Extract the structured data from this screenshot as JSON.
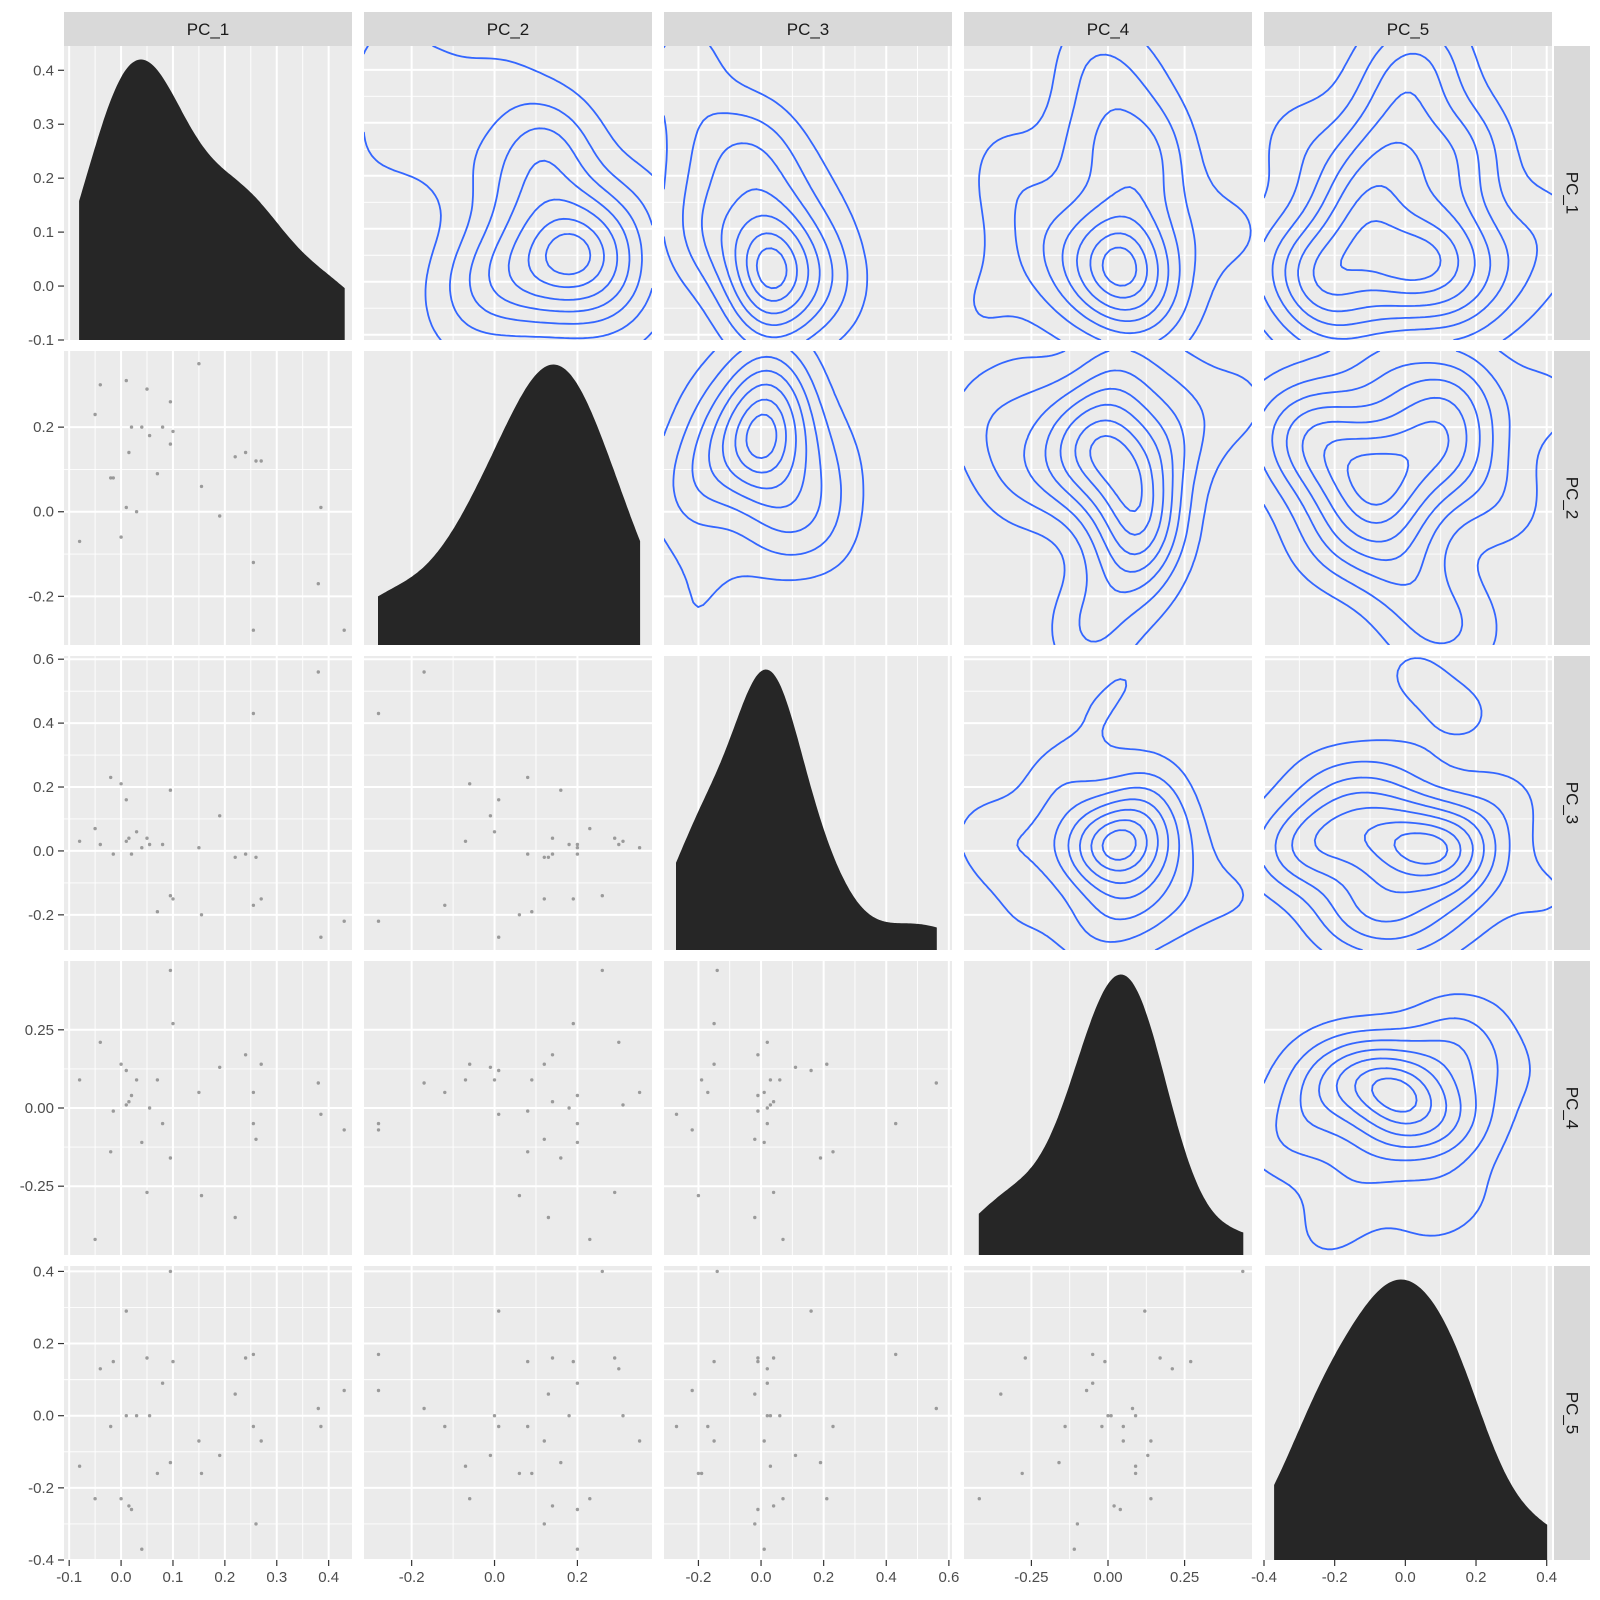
{
  "chart_data": {
    "type": "scatter",
    "title": "",
    "variables": [
      "PC_1",
      "PC_2",
      "PC_3",
      "PC_4",
      "PC_5"
    ],
    "layout": "pairs-matrix: upper = 2D density contours, diagonal = density, lower = scatter",
    "axes": {
      "PC_1": {
        "lim": [
          -0.11,
          0.445
        ],
        "ticks": [
          -0.1,
          0.0,
          0.1,
          0.2,
          0.3,
          0.4
        ],
        "tick_labels": [
          "-0.1",
          "0.0",
          "0.1",
          "0.2",
          "0.3",
          "0.4"
        ]
      },
      "PC_2": {
        "lim": [
          -0.315,
          0.38
        ],
        "ticks": [
          -0.2,
          0.0,
          0.2
        ],
        "tick_labels": [
          "-0.2",
          "0.0",
          "0.2"
        ]
      },
      "PC_3": {
        "lim": [
          -0.31,
          0.61
        ],
        "ticks": [
          -0.2,
          0.0,
          0.2,
          0.4,
          0.6
        ],
        "tick_labels": [
          "-0.2",
          "0.0",
          "0.2",
          "0.4",
          "0.6"
        ]
      },
      "PC_4": {
        "lim": [
          -0.47,
          0.47
        ],
        "ticks": [
          -0.25,
          0.0,
          0.25
        ],
        "tick_labels": [
          "-0.25",
          "0.00",
          "0.25"
        ]
      },
      "PC_5": {
        "lim": [
          -0.4,
          0.415
        ],
        "ticks": [
          -0.4,
          -0.2,
          0.0,
          0.2,
          0.4
        ],
        "tick_labels": [
          "-0.4",
          "-0.2",
          "0.0",
          "0.2",
          "0.4"
        ]
      }
    },
    "diagonal_density_ticks": {
      "ticks": [
        -0.1,
        0.0,
        0.1,
        0.2,
        0.3,
        0.4
      ],
      "tick_labels": [
        "-0.1",
        "0.0",
        "0.1",
        "0.2",
        "0.3",
        "0.4"
      ]
    },
    "points": [
      [
        -0.08,
        -0.07,
        0.03,
        0.09,
        -0.14
      ],
      [
        -0.05,
        0.23,
        0.07,
        -0.42,
        -0.23
      ],
      [
        -0.04,
        0.3,
        0.02,
        0.21,
        0.13
      ],
      [
        -0.02,
        0.08,
        0.23,
        -0.14,
        -0.03
      ],
      [
        -0.015,
        0.08,
        -0.01,
        -0.01,
        0.15
      ],
      [
        0.0,
        -0.06,
        0.21,
        0.14,
        -0.23
      ],
      [
        0.01,
        0.31,
        0.03,
        0.01,
        0.0
      ],
      [
        0.01,
        0.01,
        0.16,
        0.12,
        0.29
      ],
      [
        0.015,
        0.14,
        0.04,
        0.02,
        -0.25
      ],
      [
        0.02,
        0.2,
        -0.01,
        0.04,
        -0.26
      ],
      [
        0.03,
        0.0,
        0.06,
        0.09,
        0.0
      ],
      [
        0.04,
        0.2,
        0.01,
        -0.11,
        -0.37
      ],
      [
        0.05,
        0.29,
        0.04,
        -0.27,
        0.16
      ],
      [
        0.055,
        0.18,
        0.02,
        0.0,
        0.0
      ],
      [
        0.07,
        0.09,
        -0.19,
        0.09,
        -0.16
      ],
      [
        0.08,
        0.2,
        0.02,
        -0.05,
        0.09
      ],
      [
        0.095,
        0.26,
        -0.14,
        0.44,
        0.4
      ],
      [
        0.095,
        0.16,
        0.19,
        -0.16,
        -0.13
      ],
      [
        0.1,
        0.19,
        -0.15,
        0.27,
        0.15
      ],
      [
        0.15,
        0.35,
        0.01,
        0.05,
        -0.07
      ],
      [
        0.155,
        0.06,
        -0.2,
        -0.28,
        -0.16
      ],
      [
        0.19,
        -0.01,
        0.11,
        0.13,
        -0.11
      ],
      [
        0.22,
        0.13,
        -0.02,
        -0.35,
        0.06
      ],
      [
        0.24,
        0.14,
        -0.01,
        0.17,
        0.16
      ],
      [
        0.255,
        -0.12,
        -0.17,
        0.05,
        -0.03
      ],
      [
        0.255,
        -0.28,
        0.43,
        -0.05,
        0.17
      ],
      [
        0.26,
        0.12,
        -0.02,
        -0.1,
        -0.3
      ],
      [
        0.27,
        0.12,
        -0.15,
        0.14,
        -0.07
      ],
      [
        0.38,
        -0.17,
        0.56,
        0.08,
        0.02
      ],
      [
        0.385,
        0.01,
        -0.27,
        -0.02,
        -0.03
      ],
      [
        0.43,
        -0.28,
        -0.22,
        -0.07,
        0.07
      ]
    ]
  }
}
